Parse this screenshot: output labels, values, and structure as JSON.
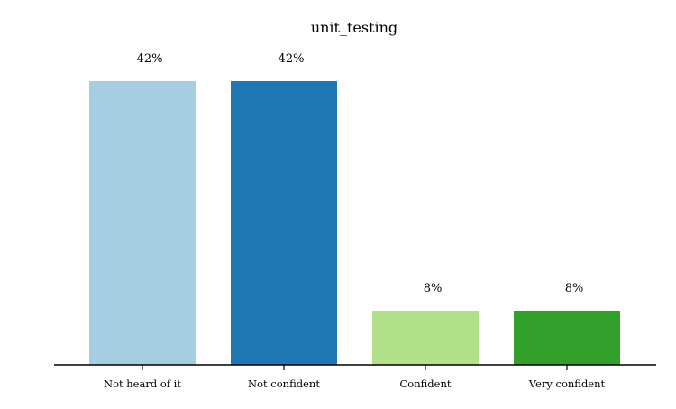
{
  "chart_data": {
    "type": "bar",
    "title": "unit_testing",
    "xlabel": "",
    "ylabel": "",
    "categories": [
      "Not heard of it",
      "Not confident",
      "Confident",
      "Very confident"
    ],
    "values": [
      42,
      42,
      8,
      8
    ],
    "value_labels": [
      "42%",
      "42%",
      "8%",
      "8%"
    ],
    "colors": [
      "#a6cee3",
      "#1f78b4",
      "#b2df8a",
      "#33a02c"
    ],
    "ylim": [
      0,
      42
    ],
    "grid": false,
    "legend": "none"
  }
}
